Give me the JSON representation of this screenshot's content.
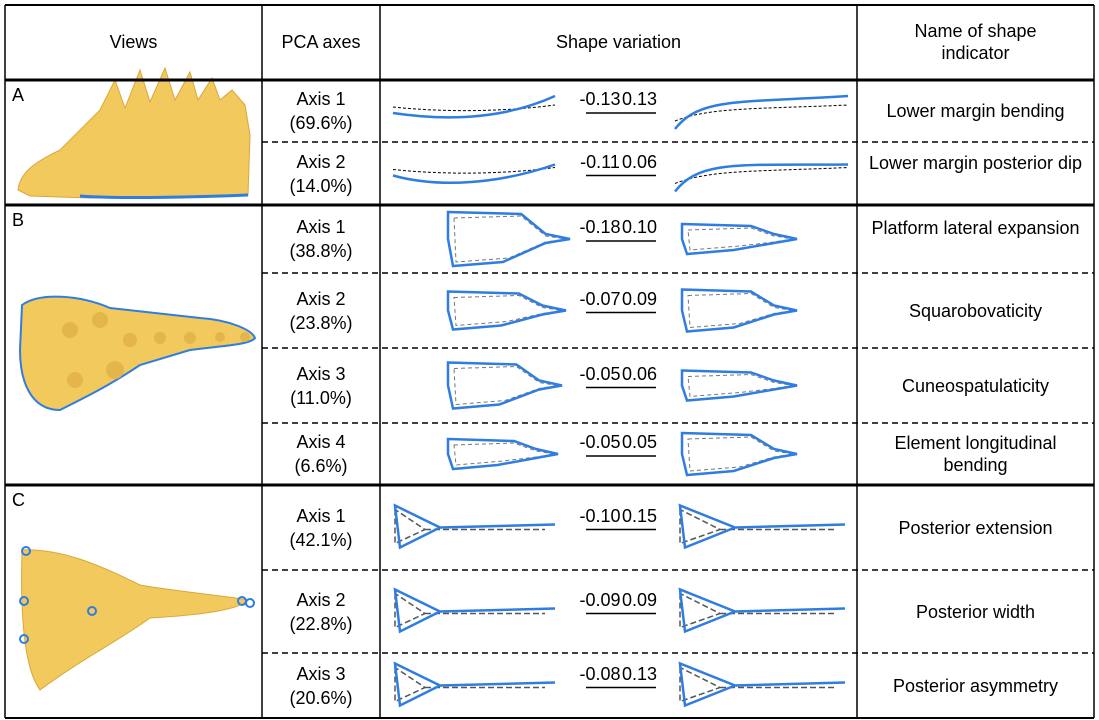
{
  "header": {
    "views": "Views",
    "pca_axes": "PCA axes",
    "shape_variation": "Shape variation",
    "name": "Name of shape indicator"
  },
  "groups": [
    {
      "label": "A",
      "rows": [
        {
          "axis": "Axis 1",
          "variance": "(69.6%)",
          "min": "-0.13",
          "max": "0.13",
          "name": "Lower margin bending"
        },
        {
          "axis": "Axis 2",
          "variance": "(14.0%)",
          "min": "-0.11",
          "max": "0.06",
          "name": "Lower margin posterior dip"
        }
      ]
    },
    {
      "label": "B",
      "rows": [
        {
          "axis": "Axis 1",
          "variance": "(38.8%)",
          "min": "-0.18",
          "max": "0.10",
          "name": "Platform lateral expansion"
        },
        {
          "axis": "Axis 2",
          "variance": "(23.8%)",
          "min": "-0.07",
          "max": "0.09",
          "name": "Squarobovaticity"
        },
        {
          "axis": "Axis 3",
          "variance": "(11.0%)",
          "min": "-0.05",
          "max": "0.06",
          "name": "Cuneospatulaticity"
        },
        {
          "axis": "Axis 4",
          "variance": "(6.6%)",
          "min": "-0.05",
          "max": "0.05",
          "name": "Element longitudinal bending"
        }
      ]
    },
    {
      "label": "C",
      "rows": [
        {
          "axis": "Axis 1",
          "variance": "(42.1%)",
          "min": "-0.10",
          "max": "0.15",
          "name": "Posterior extension"
        },
        {
          "axis": "Axis 2",
          "variance": "(22.8%)",
          "min": "-0.09",
          "max": "0.09",
          "name": "Posterior width"
        },
        {
          "axis": "Axis 3",
          "variance": "(20.6%)",
          "min": "-0.08",
          "max": "0.13",
          "name": "Posterior asymmetry"
        }
      ]
    }
  ]
}
